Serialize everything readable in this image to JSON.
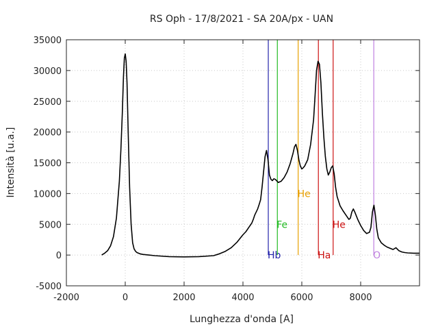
{
  "chart_data": {
    "type": "line",
    "title": "RS Oph - 17/8/2021 - SA 20A/px - UAN",
    "xlabel": "Lunghezza d'onda [A]",
    "ylabel": "Intensità [u.a.]",
    "xlim": [
      -2000,
      10000
    ],
    "ylim": [
      -5000,
      35000
    ],
    "xticks": [
      -2000,
      0,
      2000,
      4000,
      6000,
      8000
    ],
    "yticks": [
      -5000,
      0,
      5000,
      10000,
      15000,
      20000,
      25000,
      30000,
      35000
    ],
    "grid": true,
    "series": [
      {
        "color": "#000000",
        "x": [
          -800,
          -700,
          -600,
          -500,
          -400,
          -300,
          -200,
          -150,
          -100,
          -60,
          -30,
          0,
          30,
          60,
          100,
          150,
          200,
          250,
          300,
          350,
          400,
          500,
          600,
          800,
          1000,
          1500,
          2000,
          2500,
          3000,
          3200,
          3400,
          3600,
          3800,
          4000,
          4100,
          4200,
          4300,
          4350,
          4400,
          4500,
          4550,
          4600,
          4650,
          4700,
          4750,
          4800,
          4850,
          4900,
          4950,
          5000,
          5050,
          5100,
          5200,
          5300,
          5400,
          5500,
          5600,
          5700,
          5750,
          5800,
          5850,
          5900,
          5950,
          6000,
          6050,
          6100,
          6200,
          6300,
          6400,
          6450,
          6500,
          6550,
          6600,
          6650,
          6700,
          6750,
          6800,
          6850,
          6900,
          6950,
          7000,
          7050,
          7100,
          7150,
          7200,
          7300,
          7400,
          7500,
          7600,
          7650,
          7700,
          7750,
          7800,
          7900,
          8000,
          8100,
          8200,
          8300,
          8350,
          8400,
          8450,
          8500,
          8550,
          8600,
          8700,
          8800,
          8900,
          9000,
          9100,
          9200,
          9300,
          9400,
          9500,
          9600,
          9800,
          10000
        ],
        "y": [
          0,
          300,
          700,
          1500,
          3000,
          6000,
          12000,
          17000,
          23000,
          29000,
          32000,
          32700,
          31500,
          28000,
          20000,
          11000,
          5000,
          2000,
          1000,
          600,
          400,
          200,
          100,
          0,
          -100,
          -250,
          -300,
          -250,
          -100,
          200,
          600,
          1200,
          2100,
          3300,
          3800,
          4500,
          5200,
          5800,
          6500,
          7500,
          8200,
          9000,
          11000,
          13500,
          16000,
          17000,
          15500,
          13000,
          12300,
          12100,
          12400,
          12300,
          11800,
          12000,
          12600,
          13500,
          14800,
          16500,
          17600,
          18000,
          17000,
          15500,
          14500,
          14000,
          14200,
          14500,
          15500,
          18000,
          22000,
          26000,
          30000,
          31500,
          31000,
          28000,
          23000,
          19000,
          16000,
          14000,
          13000,
          13500,
          14200,
          14500,
          13200,
          11000,
          9500,
          8000,
          7200,
          6500,
          5800,
          6000,
          7000,
          7500,
          7000,
          5800,
          4800,
          4000,
          3500,
          3700,
          4500,
          7000,
          8100,
          6500,
          4200,
          2800,
          2000,
          1600,
          1300,
          1100,
          900,
          1200,
          700,
          500,
          400,
          350,
          300,
          300
        ]
      }
    ],
    "lines": [
      {
        "x": 4861,
        "label": "Hb",
        "color": "#2222aa",
        "label_y": 0
      },
      {
        "x": 5169,
        "label": "Fe",
        "color": "#22bb22",
        "label_y": 5000
      },
      {
        "x": 5876,
        "label": "He",
        "color": "#e8a000",
        "label_y": 10000
      },
      {
        "x": 6563,
        "label": "Ha",
        "color": "#cc1111",
        "label_y": 0
      },
      {
        "x": 7065,
        "label": "He",
        "color": "#cc1111",
        "label_y": 5000
      },
      {
        "x": 8446,
        "label": "O",
        "color": "#c080e0",
        "label_y": 0
      }
    ]
  }
}
